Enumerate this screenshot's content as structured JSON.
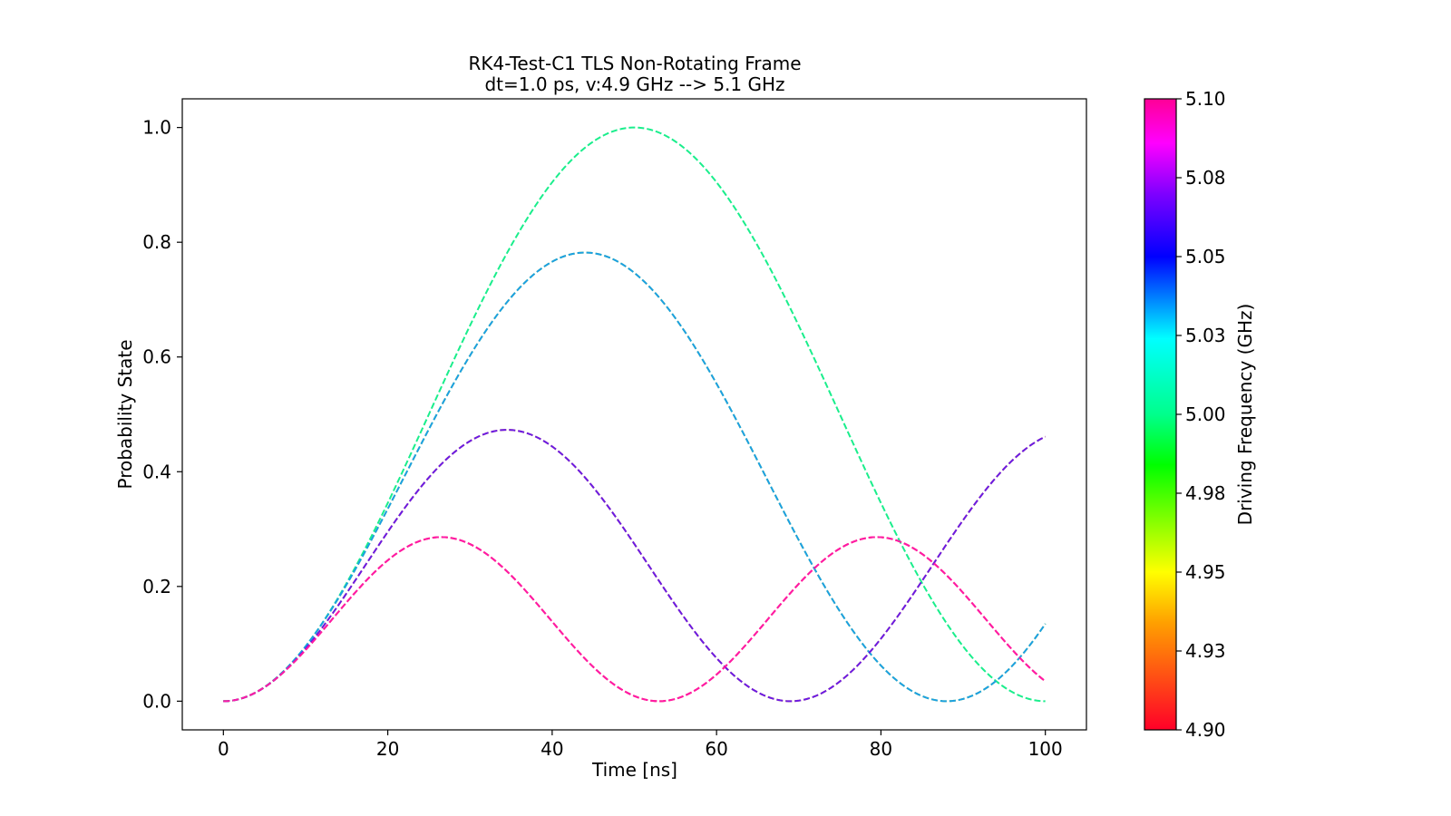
{
  "chart_data": {
    "type": "line",
    "title": "RK4-Test-C1 TLS Non-Rotating Frame",
    "subtitle": "dt=1.0 ps, v:4.9 GHz --> 5.1 GHz",
    "xlabel": "Time [ns]",
    "ylabel": "Probability State",
    "xlim": [
      -5,
      105
    ],
    "ylim": [
      -0.05,
      1.05
    ],
    "xticks": [
      0,
      20,
      40,
      60,
      80,
      100
    ],
    "xtick_labels": [
      "0",
      "20",
      "40",
      "60",
      "80",
      "100"
    ],
    "yticks": [
      0.0,
      0.2,
      0.4,
      0.6,
      0.8,
      1.0
    ],
    "ytick_labels": [
      "0.0",
      "0.2",
      "0.4",
      "0.6",
      "0.8",
      "1.0"
    ],
    "grid": false,
    "line_style": "dashed",
    "model": "P(t) = amplitude * sin^2(pi * t / (2 * half_period))",
    "series": [
      {
        "name": "4.90 GHz",
        "frequency": 4.9,
        "amplitude": 0.286,
        "half_period": 26.5,
        "color": "#ff1a3c"
      },
      {
        "name": "4.93 GHz",
        "frequency": 4.93,
        "amplitude": 0.473,
        "half_period": 34.5,
        "color": "#ffa31a"
      },
      {
        "name": "4.95 GHz",
        "frequency": 4.95,
        "amplitude": 0.782,
        "half_period": 44.0,
        "color": "#c8e61a"
      },
      {
        "name": "5.00 GHz",
        "frequency": 5.0,
        "amplitude": 1.0,
        "half_period": 50.0,
        "color": "#1aee8c"
      },
      {
        "name": "5.05 GHz",
        "frequency": 5.05,
        "amplitude": 0.782,
        "half_period": 44.0,
        "color": "#1a9fe6"
      },
      {
        "name": "5.08 GHz",
        "frequency": 5.08,
        "amplitude": 0.473,
        "half_period": 34.5,
        "color": "#6a1ae6"
      },
      {
        "name": "5.10 GHz",
        "frequency": 5.1,
        "amplitude": 0.286,
        "half_period": 26.5,
        "color": "#ff1aa6"
      }
    ],
    "colorbar": {
      "label": "Driving Frequency (GHz)",
      "min": 4.9,
      "max": 5.1,
      "tick_values": [
        4.9,
        4.925,
        4.95,
        4.975,
        5.0,
        5.025,
        5.05,
        5.075,
        5.1
      ],
      "tick_labels": [
        "4.90",
        "4.93",
        "4.95",
        "4.98",
        "5.00",
        "5.03",
        "5.05",
        "5.08",
        "5.10"
      ],
      "stops": [
        {
          "value": 0.0,
          "color": "#ff0028"
        },
        {
          "value": 0.17,
          "color": "#ffa000"
        },
        {
          "value": 0.25,
          "color": "#ffff00"
        },
        {
          "value": 0.42,
          "color": "#00ff00"
        },
        {
          "value": 0.5,
          "color": "#00ff8c"
        },
        {
          "value": 0.62,
          "color": "#00ffff"
        },
        {
          "value": 0.75,
          "color": "#0000ff"
        },
        {
          "value": 0.85,
          "color": "#7f00ff"
        },
        {
          "value": 0.93,
          "color": "#ff00ff"
        },
        {
          "value": 1.0,
          "color": "#ff0096"
        }
      ]
    }
  }
}
